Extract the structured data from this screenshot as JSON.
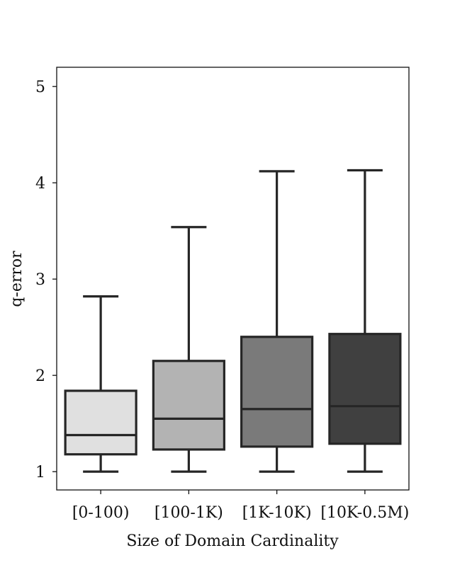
{
  "chart_data": {
    "type": "box",
    "title": "",
    "xlabel": "Size of Domain Cardinality",
    "ylabel": "q-error",
    "ylim": [
      0.81,
      5.2
    ],
    "yticks": [
      1,
      2,
      3,
      4,
      5
    ],
    "grid": false,
    "categories": [
      "[0-100)",
      "[100-1K)",
      "[1K-10K)",
      "[10K-0.5M)"
    ],
    "boxes": [
      {
        "whisker_low": 1.0,
        "q1": 1.18,
        "median": 1.38,
        "q3": 1.84,
        "whisker_high": 2.82,
        "color": "#e0e0e0"
      },
      {
        "whisker_low": 1.0,
        "q1": 1.23,
        "median": 1.55,
        "q3": 2.15,
        "whisker_high": 3.54,
        "color": "#b3b3b3"
      },
      {
        "whisker_low": 1.0,
        "q1": 1.26,
        "median": 1.65,
        "q3": 2.4,
        "whisker_high": 4.12,
        "color": "#7a7a7a"
      },
      {
        "whisker_low": 1.0,
        "q1": 1.29,
        "median": 1.68,
        "q3": 2.43,
        "whisker_high": 4.13,
        "color": "#404040"
      }
    ]
  }
}
